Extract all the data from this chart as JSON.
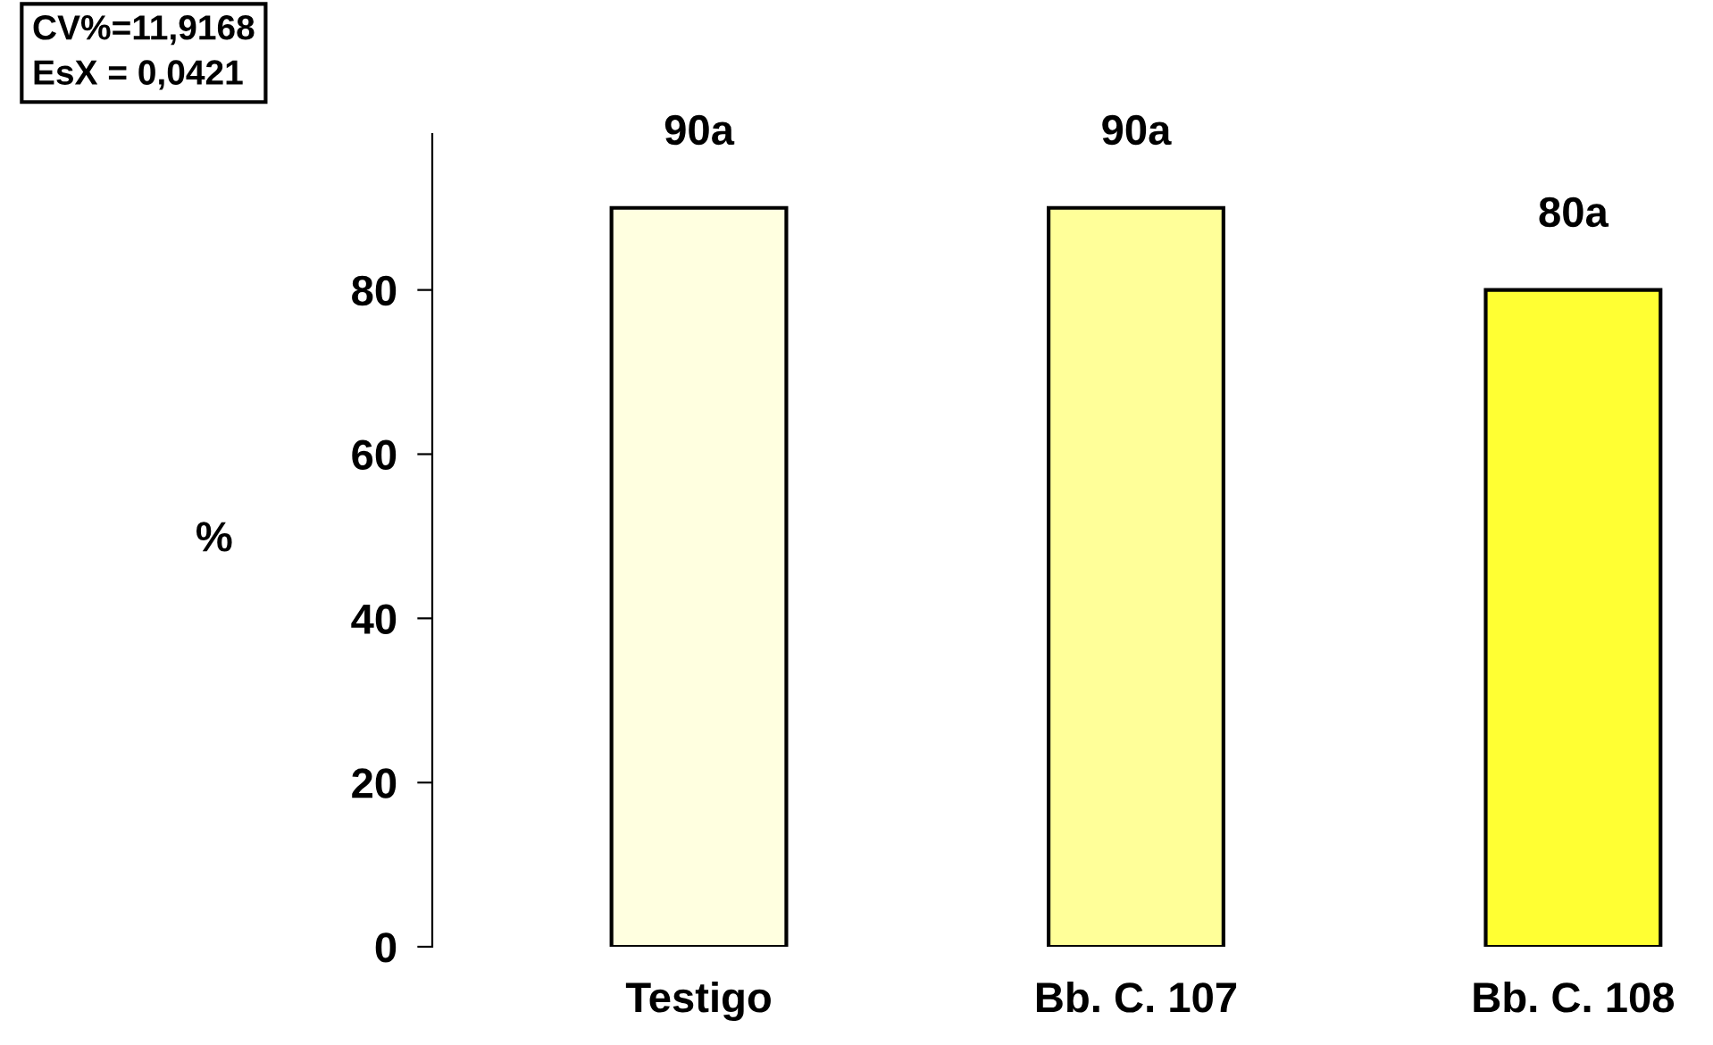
{
  "chart_data": {
    "type": "bar",
    "ylabel": "%",
    "categories": [
      "Testigo",
      "Bb. C. 107",
      "Bb. C. 108"
    ],
    "values": [
      90,
      90,
      80
    ],
    "colors": [
      "#ffffe0",
      "#ffff99",
      "#ffff33"
    ],
    "value_labels": [
      "90a",
      "90a",
      "80a"
    ],
    "ylim": [
      0,
      99
    ],
    "yticks": [
      0,
      20,
      40,
      60,
      80
    ],
    "annotations": [
      "CV%=11,9168",
      "EsX = 0,0421"
    ],
    "grid": false,
    "legend": false
  }
}
